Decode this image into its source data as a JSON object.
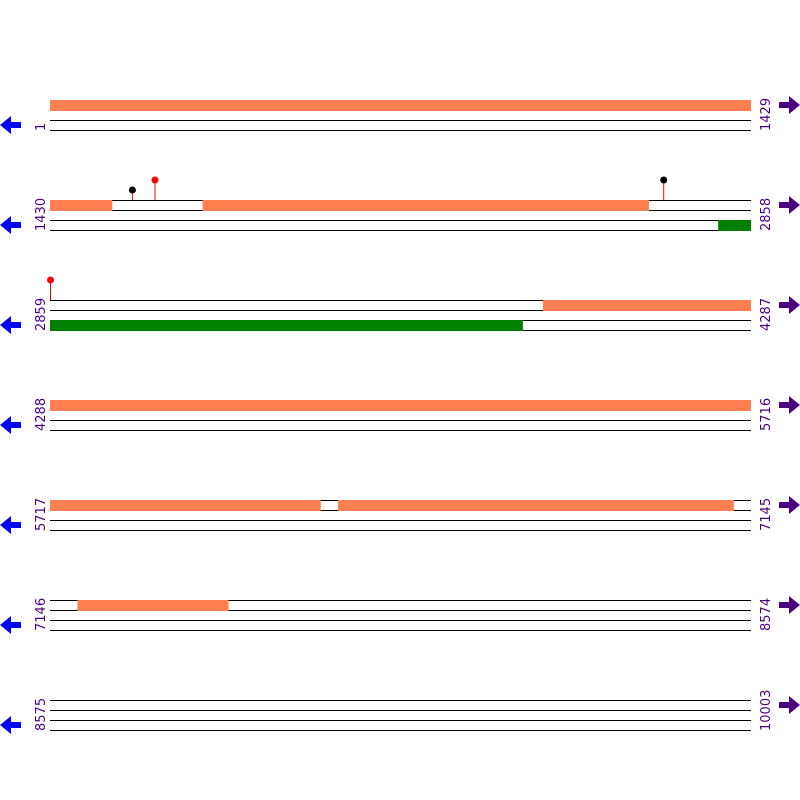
{
  "colors": {
    "forward_feature": "#ff7f50",
    "reverse_feature": "#008000",
    "track_line": "#000000",
    "start_label": "#4b0082",
    "end_label": "#4b0082",
    "left_arrow": "#0000ff",
    "right_arrow": "#4b0082",
    "marker_red": "#ff0000",
    "marker_black": "#000000"
  },
  "icons": {
    "left": "left-arrow-icon",
    "right": "right-arrow-icon"
  },
  "rows": [
    {
      "start": 1,
      "end": 1429,
      "forward": [
        [
          1,
          1429
        ]
      ],
      "reverse": [],
      "markers": []
    },
    {
      "start": 1430,
      "end": 2858,
      "forward": [
        [
          1430,
          1556
        ],
        [
          1741,
          2650
        ]
      ],
      "reverse": [
        [
          2792,
          2858
        ]
      ],
      "markers": [
        {
          "pos": 1597,
          "color": "black"
        },
        {
          "pos": 1643,
          "color": "red"
        },
        {
          "pos": 2680,
          "color": "black"
        }
      ]
    },
    {
      "start": 2859,
      "end": 4287,
      "forward": [
        [
          3864,
          4287
        ]
      ],
      "reverse": [
        [
          2859,
          3822
        ]
      ],
      "markers": [
        {
          "pos": 2859,
          "color": "red"
        }
      ]
    },
    {
      "start": 4288,
      "end": 5716,
      "forward": [
        [
          4288,
          5716
        ]
      ],
      "reverse": [],
      "markers": []
    },
    {
      "start": 5717,
      "end": 7145,
      "forward": [
        [
          5717,
          6268
        ],
        [
          6304,
          7110
        ]
      ],
      "reverse": [],
      "markers": []
    },
    {
      "start": 7146,
      "end": 8574,
      "forward": [
        [
          7202,
          7509
        ]
      ],
      "reverse": [],
      "markers": []
    },
    {
      "start": 8575,
      "end": 10003,
      "forward": [],
      "reverse": [],
      "markers": []
    }
  ]
}
